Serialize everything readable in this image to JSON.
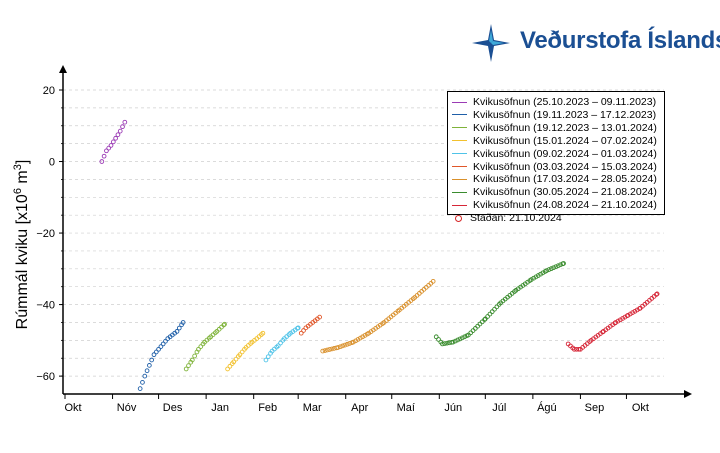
{
  "logo": {
    "text": "Veðurstofa Íslands",
    "color": "#1b4f93"
  },
  "chart_data": {
    "type": "scatter",
    "ylabel_main": "Rúmmál kviku [x10",
    "ylabel_sup": "6",
    "ylabel_unit": " m",
    "ylabel_sup2": "3",
    "ylabel_close": "]",
    "ylim": [
      -65,
      25
    ],
    "yticks": [
      20,
      0,
      -20,
      -40,
      -60
    ],
    "ytick_labels": [
      "20",
      "0",
      "−20",
      "−40",
      "−60"
    ],
    "xlim": [
      "2023-10-01",
      "2024-11-01"
    ],
    "xticks": [
      "2023-10-01",
      "2023-11-01",
      "2023-12-01",
      "2024-01-01",
      "2024-02-01",
      "2024-03-01",
      "2024-04-01",
      "2024-05-01",
      "2024-06-01",
      "2024-07-01",
      "2024-08-01",
      "2024-09-01",
      "2024-10-01"
    ],
    "xtick_labels": [
      "Okt",
      "Nóv",
      "Des",
      "Jan",
      "Feb",
      "Mar",
      "Apr",
      "Maí",
      "Jún",
      "Júl",
      "Ágú",
      "Sep",
      "Okt"
    ],
    "grid": true,
    "legend_position": "top-right",
    "series": [
      {
        "name": "Kvikusöfnun (25.10.2023 – 09.11.2023)",
        "color": "#9b3bb5",
        "x": [
          "2023-10-25",
          "2023-10-28",
          "2023-10-31",
          "2023-11-03",
          "2023-11-06",
          "2023-11-09"
        ],
        "y": [
          0,
          3,
          4.5,
          6.5,
          8.5,
          11
        ]
      },
      {
        "name": "Kvikusöfnun (19.11.2023 – 17.12.2023)",
        "color": "#1f5fa8",
        "x": [
          "2023-11-19",
          "2023-11-22",
          "2023-11-25",
          "2023-11-28",
          "2023-12-01",
          "2023-12-04",
          "2023-12-07",
          "2023-12-10",
          "2023-12-13",
          "2023-12-17"
        ],
        "y": [
          -63.5,
          -60,
          -57,
          -54,
          -52.5,
          -51,
          -49.5,
          -48.5,
          -47.5,
          -45
        ]
      },
      {
        "name": "Kvikusöfnun (19.12.2023 – 13.01.2024)",
        "color": "#7fb33a",
        "x": [
          "2023-12-19",
          "2023-12-23",
          "2023-12-27",
          "2023-12-31",
          "2024-01-04",
          "2024-01-08",
          "2024-01-13"
        ],
        "y": [
          -58,
          -55.5,
          -52.5,
          -50.5,
          -49,
          -47.5,
          -45.5
        ]
      },
      {
        "name": "Kvikusöfnun (15.01.2024 – 07.02.2024)",
        "color": "#f2c12e",
        "x": [
          "2024-01-15",
          "2024-01-19",
          "2024-01-23",
          "2024-01-27",
          "2024-01-31",
          "2024-02-03",
          "2024-02-07"
        ],
        "y": [
          -58,
          -56,
          -54,
          -52,
          -50.5,
          -49.5,
          -48
        ]
      },
      {
        "name": "Kvikusöfnun (09.02.2024 – 01.03.2024)",
        "color": "#4fc3e8",
        "x": [
          "2024-02-09",
          "2024-02-13",
          "2024-02-17",
          "2024-02-21",
          "2024-02-25",
          "2024-03-01"
        ],
        "y": [
          -55.5,
          -53,
          -51.5,
          -49.5,
          -48,
          -46.5
        ]
      },
      {
        "name": "Kvikusöfnun (03.03.2024 – 15.03.2024)",
        "color": "#e0572a",
        "x": [
          "2024-03-03",
          "2024-03-06",
          "2024-03-09",
          "2024-03-12",
          "2024-03-15"
        ],
        "y": [
          -48,
          -46.5,
          -45.5,
          -44.5,
          -43.5
        ]
      },
      {
        "name": "Kvikusöfnun (17.03.2024 – 28.05.2024)",
        "color": "#d9902b",
        "x": [
          "2024-03-17",
          "2024-03-27",
          "2024-04-06",
          "2024-04-16",
          "2024-04-26",
          "2024-05-06",
          "2024-05-16",
          "2024-05-28"
        ],
        "y": [
          -53,
          -52,
          -50.5,
          -48,
          -45,
          -41.5,
          -38,
          -33.5
        ]
      },
      {
        "name": "Kvikusöfnun (30.05.2024 – 21.08.2024)",
        "color": "#3a8c2e",
        "x": [
          "2024-05-30",
          "2024-06-03",
          "2024-06-10",
          "2024-06-20",
          "2024-07-01",
          "2024-07-11",
          "2024-07-21",
          "2024-07-31",
          "2024-08-10",
          "2024-08-21"
        ],
        "y": [
          -49,
          -51,
          -50.5,
          -48.5,
          -44,
          -39.5,
          -36,
          -33,
          -30.5,
          -28.5
        ]
      },
      {
        "name": "Kvikusöfnun (24.08.2024 – 21.10.2024)",
        "color": "#d62738",
        "x": [
          "2024-08-24",
          "2024-08-28",
          "2024-09-01",
          "2024-09-08",
          "2024-09-16",
          "2024-09-24",
          "2024-10-02",
          "2024-10-10",
          "2024-10-21"
        ],
        "y": [
          -51,
          -52.5,
          -52.5,
          -50,
          -47.5,
          -45,
          -43,
          -41,
          -37
        ]
      }
    ],
    "marker_legend": {
      "name": "Staðan: 21.10.2024",
      "color": "#d62728"
    }
  }
}
